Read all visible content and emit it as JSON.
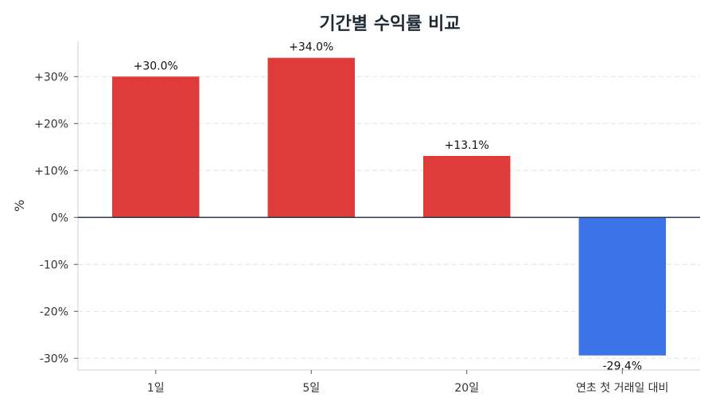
{
  "chart_data": {
    "type": "bar",
    "title": "기간별 수익률 비교",
    "ylabel": "%",
    "xlabel": "",
    "categories": [
      "1일",
      "5일",
      "20일",
      "연초 첫 거래일 대비"
    ],
    "values": [
      30.0,
      34.0,
      13.1,
      -29.4
    ],
    "value_labels": [
      "+30.0%",
      "+34.0%",
      "+13.1%",
      "-29.4%"
    ],
    "ylim": [
      -32.5,
      37.5
    ],
    "yticks": [
      -30,
      -20,
      -10,
      0,
      10,
      20,
      30
    ],
    "ytick_labels": [
      "-30%",
      "-20%",
      "-10%",
      "0%",
      "+10%",
      "+20%",
      "+30%"
    ],
    "grid": "horizontal dashed",
    "colors": {
      "positive": "#e03b3b",
      "negative": "#3b73e8",
      "zero_line": "#2d3a4a",
      "grid": "#e3e3e3",
      "axis": "#cfcfcf"
    }
  }
}
